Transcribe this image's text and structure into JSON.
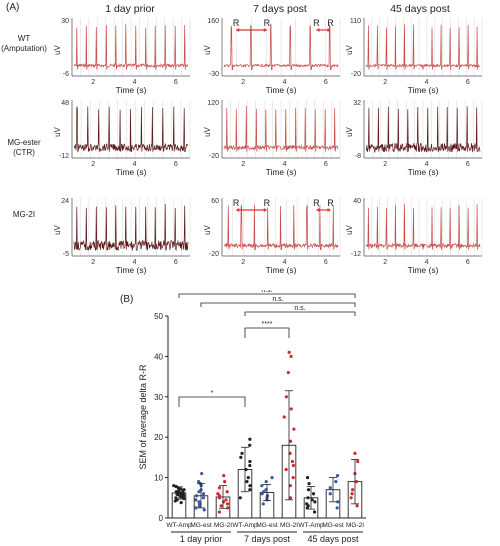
{
  "panel_a": {
    "label": "(A)",
    "columns": [
      "1 day prior",
      "7 days post",
      "45 days post"
    ],
    "rows": [
      {
        "label_line1": "WT",
        "label_line2": "(Amputation)"
      },
      {
        "label_line1": "MG-ester",
        "label_line2": "(CTR)"
      },
      {
        "label_line1": "MG-2I",
        "label_line2": ""
      }
    ],
    "xlabel": "Time (s)",
    "ylabel": "uV",
    "x_ticks": [
      "2",
      "4",
      "6"
    ],
    "traces": [
      {
        "row": 0,
        "col": 0,
        "ymax": "30",
        "ymin": "-6",
        "peaks": 12,
        "noise": 0.15
      },
      {
        "row": 0,
        "col": 1,
        "ymax": "160",
        "ymin": "-30",
        "peaks": 6,
        "noise": 0.12,
        "marker": "R"
      },
      {
        "row": 0,
        "col": 2,
        "ymax": "110",
        "ymin": "-20",
        "peaks": 13,
        "noise": 0.12
      },
      {
        "row": 1,
        "col": 0,
        "ymax": "48",
        "ymin": "-12",
        "peaks": 11,
        "noise": 0.35
      },
      {
        "row": 1,
        "col": 1,
        "ymax": "120",
        "ymin": "-20",
        "peaks": 12,
        "noise": 0.2
      },
      {
        "row": 1,
        "col": 2,
        "ymax": "32",
        "ymin": "-8",
        "peaks": 12,
        "noise": 0.45
      },
      {
        "row": 2,
        "col": 0,
        "ymax": "24",
        "ymin": "-5",
        "peaks": 12,
        "noise": 0.5
      },
      {
        "row": 2,
        "col": 1,
        "ymax": "60",
        "ymin": "-20",
        "peaks": 9,
        "noise": 0.18,
        "marker": "R"
      },
      {
        "row": 2,
        "col": 2,
        "ymax": "40",
        "ymin": "-12",
        "peaks": 13,
        "noise": 0.2
      }
    ],
    "colors": {
      "trace": "#c84a4a",
      "dark": "#5a1a1a",
      "grid": "#d8d8d8",
      "arrow": "#e03030"
    }
  },
  "chart_data": {
    "label": "(B)",
    "type": "bar",
    "ylabel": "SEM of average delta R-R",
    "ylim": [
      0,
      50
    ],
    "y_ticks": [
      0,
      10,
      20,
      30,
      40,
      50
    ],
    "categories": [
      "WT-Amp",
      "MG-est",
      "MG-2I",
      "WT-Amp",
      "MG-est",
      "MG-2I",
      "WT-Amp",
      "MG-est",
      "MG-2I"
    ],
    "group_labels": [
      "1 day prior",
      "7 days post",
      "45 days post"
    ],
    "values": [
      6.2,
      5.5,
      5.2,
      12.0,
      6.3,
      18.0,
      5.0,
      7.0,
      9.0
    ],
    "errors": [
      1.5,
      3.0,
      2.8,
      5.5,
      2.0,
      13.5,
      2.8,
      3.0,
      5.5
    ],
    "point_colors": [
      "#222222",
      "#3a56a8",
      "#d02a2a",
      "#222222",
      "#3a56a8",
      "#d02a2a",
      "#222222",
      "#3a56a8",
      "#d02a2a"
    ],
    "points": [
      [
        4.5,
        5,
        5.5,
        6,
        6.2,
        6.5,
        7,
        7.5,
        5.8,
        6.8,
        4.8,
        5.2,
        6.4,
        7.2,
        3.8,
        8,
        6.1,
        5.6,
        6.9,
        4.2,
        7.8,
        5.9,
        6.3,
        5.4
      ],
      [
        2,
        3,
        4,
        5,
        5.5,
        6,
        7,
        8,
        9,
        11,
        4.5,
        3.5,
        6.5,
        2.5,
        8.5
      ],
      [
        1.5,
        2.5,
        3.5,
        4,
        5,
        5.5,
        6.5,
        7.5,
        9,
        10.5,
        3,
        4.5,
        6
      ],
      [
        5,
        7,
        9,
        10,
        12,
        13,
        14,
        15,
        16,
        18,
        19.5,
        8
      ],
      [
        3.5,
        4.5,
        5.5,
        6,
        6.5,
        7,
        8,
        9,
        10,
        5
      ],
      [
        5,
        8,
        10,
        12,
        14,
        16,
        19,
        22,
        25,
        30,
        36,
        40,
        41,
        27,
        13
      ],
      [
        1.5,
        2.5,
        3.5,
        4.5,
        5,
        6,
        7,
        8.5,
        10,
        3,
        4
      ],
      [
        2.5,
        4,
        6,
        7.5,
        9,
        10.5
      ],
      [
        3,
        5,
        7,
        9,
        11,
        14,
        16,
        6
      ]
    ],
    "significance": [
      {
        "from": 0,
        "to": 8,
        "label": "n.s."
      },
      {
        "from": 1,
        "to": 8,
        "label": "n.s."
      },
      {
        "from": 3,
        "to": 8,
        "label": "n.s."
      },
      {
        "from": 3,
        "to": 5,
        "label": "****"
      },
      {
        "from": 0,
        "to": 3,
        "label": "*"
      }
    ]
  }
}
